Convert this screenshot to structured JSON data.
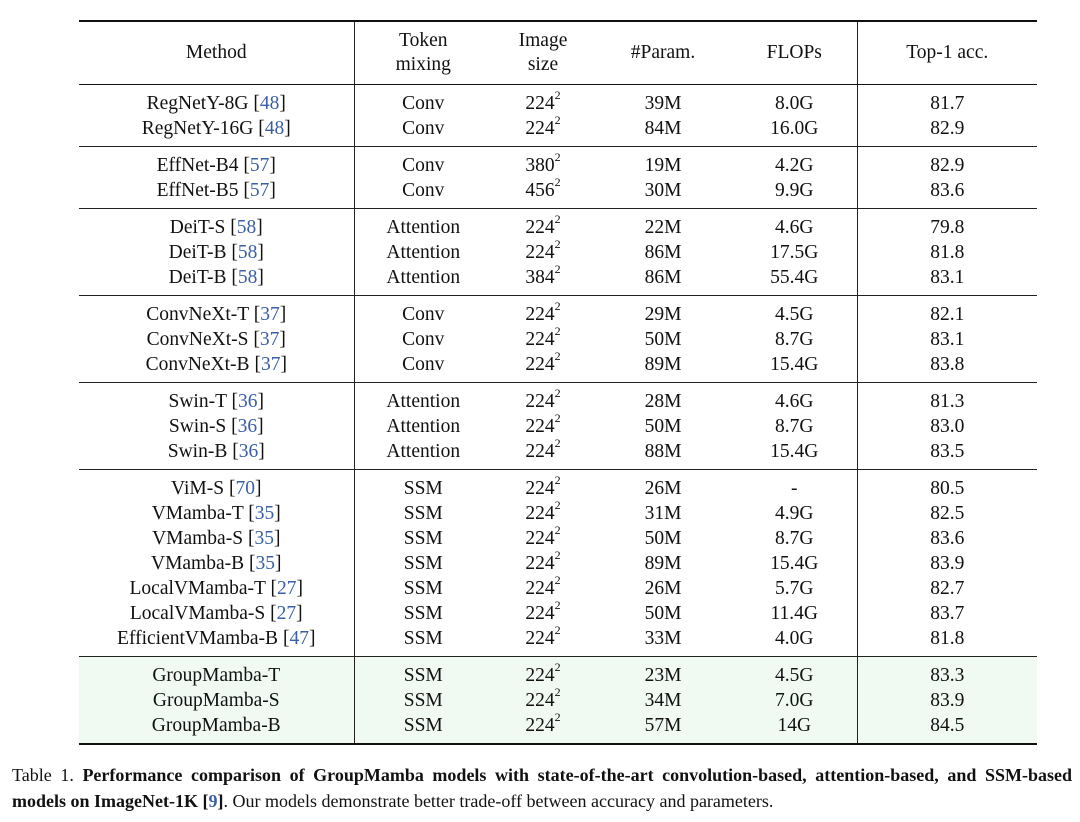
{
  "table": {
    "headers": {
      "method": "Method",
      "token_mixing_line1": "Token",
      "token_mixing_line2": "mixing",
      "image_size_line1": "Image",
      "image_size_line2": "size",
      "params": "#Param.",
      "flops": "FLOPs",
      "top1": "Top-1 acc."
    },
    "groups": [
      {
        "rows": [
          {
            "method": "RegNetY-8G",
            "cite": "48",
            "mixing": "Conv",
            "size": "224",
            "sup": "2",
            "params": "39M",
            "flops": "8.0G",
            "acc": "81.7"
          },
          {
            "method": "RegNetY-16G",
            "cite": "48",
            "mixing": "Conv",
            "size": "224",
            "sup": "2",
            "params": "84M",
            "flops": "16.0G",
            "acc": "82.9"
          }
        ]
      },
      {
        "rows": [
          {
            "method": "EffNet-B4",
            "cite": "57",
            "mixing": "Conv",
            "size": "380",
            "sup": "2",
            "params": "19M",
            "flops": "4.2G",
            "acc": "82.9"
          },
          {
            "method": "EffNet-B5",
            "cite": "57",
            "mixing": "Conv",
            "size": "456",
            "sup": "2",
            "params": "30M",
            "flops": "9.9G",
            "acc": "83.6"
          }
        ]
      },
      {
        "rows": [
          {
            "method": "DeiT-S",
            "cite": "58",
            "mixing": "Attention",
            "size": "224",
            "sup": "2",
            "params": "22M",
            "flops": "4.6G",
            "acc": "79.8"
          },
          {
            "method": "DeiT-B",
            "cite": "58",
            "mixing": "Attention",
            "size": "224",
            "sup": "2",
            "params": "86M",
            "flops": "17.5G",
            "acc": "81.8"
          },
          {
            "method": "DeiT-B",
            "cite": "58",
            "mixing": "Attention",
            "size": "384",
            "sup": "2",
            "params": "86M",
            "flops": "55.4G",
            "acc": "83.1"
          }
        ]
      },
      {
        "rows": [
          {
            "method": "ConvNeXt-T",
            "cite": "37",
            "mixing": "Conv",
            "size": "224",
            "sup": "2",
            "params": "29M",
            "flops": "4.5G",
            "acc": "82.1"
          },
          {
            "method": "ConvNeXt-S",
            "cite": "37",
            "mixing": "Conv",
            "size": "224",
            "sup": "2",
            "params": "50M",
            "flops": "8.7G",
            "acc": "83.1"
          },
          {
            "method": "ConvNeXt-B",
            "cite": "37",
            "mixing": "Conv",
            "size": "224",
            "sup": "2",
            "params": "89M",
            "flops": "15.4G",
            "acc": "83.8"
          }
        ]
      },
      {
        "rows": [
          {
            "method": "Swin-T",
            "cite": "36",
            "mixing": "Attention",
            "size": "224",
            "sup": "2",
            "params": "28M",
            "flops": "4.6G",
            "acc": "81.3"
          },
          {
            "method": "Swin-S",
            "cite": "36",
            "mixing": "Attention",
            "size": "224",
            "sup": "2",
            "params": "50M",
            "flops": "8.7G",
            "acc": "83.0"
          },
          {
            "method": "Swin-B",
            "cite": "36",
            "mixing": "Attention",
            "size": "224",
            "sup": "2",
            "params": "88M",
            "flops": "15.4G",
            "acc": "83.5"
          }
        ]
      },
      {
        "rows": [
          {
            "method": "ViM-S",
            "cite": "70",
            "mixing": "SSM",
            "size": "224",
            "sup": "2",
            "params": "26M",
            "flops": "-",
            "acc": "80.5"
          },
          {
            "method": "VMamba-T",
            "cite": "35",
            "mixing": "SSM",
            "size": "224",
            "sup": "2",
            "params": "31M",
            "flops": "4.9G",
            "acc": "82.5"
          },
          {
            "method": "VMamba-S",
            "cite": "35",
            "mixing": "SSM",
            "size": "224",
            "sup": "2",
            "params": "50M",
            "flops": "8.7G",
            "acc": "83.6"
          },
          {
            "method": "VMamba-B",
            "cite": "35",
            "mixing": "SSM",
            "size": "224",
            "sup": "2",
            "params": "89M",
            "flops": "15.4G",
            "acc": "83.9"
          },
          {
            "method": "LocalVMamba-T",
            "cite": "27",
            "mixing": "SSM",
            "size": "224",
            "sup": "2",
            "params": "26M",
            "flops": "5.7G",
            "acc": "82.7"
          },
          {
            "method": "LocalVMamba-S",
            "cite": "27",
            "mixing": "SSM",
            "size": "224",
            "sup": "2",
            "params": "50M",
            "flops": "11.4G",
            "acc": "83.7"
          },
          {
            "method": "EfficientVMamba-B",
            "cite": "47",
            "mixing": "SSM",
            "size": "224",
            "sup": "2",
            "params": "33M",
            "flops": "4.0G",
            "acc": "81.8"
          }
        ]
      },
      {
        "highlight": true,
        "rows": [
          {
            "method": "GroupMamba-T",
            "cite": "",
            "mixing": "SSM",
            "size": "224",
            "sup": "2",
            "params": "23M",
            "flops": "4.5G",
            "acc": "83.3"
          },
          {
            "method": "GroupMamba-S",
            "cite": "",
            "mixing": "SSM",
            "size": "224",
            "sup": "2",
            "params": "34M",
            "flops": "7.0G",
            "acc": "83.9"
          },
          {
            "method": "GroupMamba-B",
            "cite": "",
            "mixing": "SSM",
            "size": "224",
            "sup": "2",
            "params": "57M",
            "flops": "14G",
            "acc": "84.5"
          }
        ]
      }
    ]
  },
  "caption": {
    "label": "Table 1.",
    "bold_text": "Performance comparison of GroupMamba models with state-of-the-art convolution-based, attention-based, and SSM-based models on ImageNet-1K",
    "cite": "9",
    "rest": ". Our models demonstrate better trade-off between accuracy and parameters."
  },
  "colors": {
    "citation": "#3a5fa8",
    "highlight_bg": "#f0faf3"
  }
}
